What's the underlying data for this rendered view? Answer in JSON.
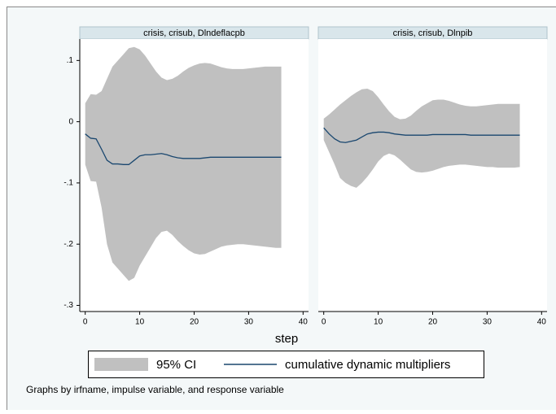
{
  "chart_data": {
    "type": "line",
    "xlabel": "step",
    "note": "Graphs by irfname, impulse variable, and response variable",
    "x": [
      0,
      1,
      2,
      3,
      4,
      5,
      6,
      7,
      8,
      9,
      10,
      11,
      12,
      13,
      14,
      15,
      16,
      17,
      18,
      19,
      20,
      21,
      22,
      23,
      24,
      25,
      26,
      27,
      28,
      29,
      30,
      31,
      32,
      33,
      34,
      35,
      36
    ],
    "xlim": [
      -1,
      41
    ],
    "xticks": [
      0,
      10,
      20,
      30,
      40
    ],
    "ylim": [
      -0.31,
      0.135
    ],
    "yticks": [
      {
        "value": 0.1,
        "label": ".1"
      },
      0,
      {
        "value": -0.1,
        "label": "-.1"
      },
      {
        "value": -0.2,
        "label": "-.2"
      },
      {
        "value": -0.3,
        "label": "-.3"
      }
    ],
    "series": [
      {
        "name": "95% CI",
        "color": "#c0c0c0"
      },
      {
        "name": "cumulative dynamic multipliers",
        "color": "#1a476f"
      }
    ],
    "panels": [
      {
        "title": "crisis, crisub, Dlndeflacpb",
        "ci_upper": [
          0.03,
          0.045,
          0.044,
          0.05,
          0.07,
          0.09,
          0.1,
          0.11,
          0.12,
          0.122,
          0.118,
          0.108,
          0.095,
          0.082,
          0.072,
          0.068,
          0.07,
          0.075,
          0.082,
          0.088,
          0.092,
          0.095,
          0.096,
          0.095,
          0.092,
          0.089,
          0.087,
          0.086,
          0.086,
          0.086,
          0.087,
          0.088,
          0.089,
          0.09,
          0.09,
          0.09,
          0.09
        ],
        "ci_lower": [
          -0.07,
          -0.097,
          -0.098,
          -0.14,
          -0.2,
          -0.23,
          -0.24,
          -0.25,
          -0.26,
          -0.255,
          -0.235,
          -0.22,
          -0.205,
          -0.19,
          -0.18,
          -0.178,
          -0.185,
          -0.195,
          -0.203,
          -0.21,
          -0.215,
          -0.217,
          -0.216,
          -0.212,
          -0.208,
          -0.204,
          -0.202,
          -0.201,
          -0.2,
          -0.2,
          -0.201,
          -0.202,
          -0.203,
          -0.204,
          -0.205,
          -0.206,
          -0.206
        ],
        "values": [
          -0.02,
          -0.027,
          -0.028,
          -0.045,
          -0.063,
          -0.069,
          -0.069,
          -0.07,
          -0.07,
          -0.063,
          -0.056,
          -0.054,
          -0.054,
          -0.053,
          -0.052,
          -0.054,
          -0.057,
          -0.059,
          -0.06,
          -0.06,
          -0.06,
          -0.06,
          -0.059,
          -0.058,
          -0.058,
          -0.058,
          -0.058,
          -0.058,
          -0.058,
          -0.058,
          -0.058,
          -0.058,
          -0.058,
          -0.058,
          -0.058,
          -0.058,
          -0.058
        ]
      },
      {
        "title": "crisis, crisub, Dlnpib",
        "ci_upper": [
          0.005,
          0.012,
          0.02,
          0.028,
          0.035,
          0.042,
          0.048,
          0.053,
          0.054,
          0.05,
          0.04,
          0.028,
          0.017,
          0.008,
          0.004,
          0.005,
          0.01,
          0.018,
          0.025,
          0.03,
          0.035,
          0.036,
          0.036,
          0.034,
          0.031,
          0.028,
          0.026,
          0.025,
          0.025,
          0.026,
          0.027,
          0.028,
          0.029,
          0.029,
          0.029,
          0.029,
          0.029
        ],
        "ci_lower": [
          -0.03,
          -0.05,
          -0.07,
          -0.092,
          -0.1,
          -0.105,
          -0.108,
          -0.1,
          -0.09,
          -0.078,
          -0.065,
          -0.056,
          -0.052,
          -0.055,
          -0.062,
          -0.07,
          -0.078,
          -0.082,
          -0.083,
          -0.082,
          -0.08,
          -0.077,
          -0.074,
          -0.072,
          -0.071,
          -0.07,
          -0.07,
          -0.071,
          -0.072,
          -0.073,
          -0.074,
          -0.074,
          -0.075,
          -0.075,
          -0.075,
          -0.075,
          -0.074
        ],
        "values": [
          -0.01,
          -0.02,
          -0.028,
          -0.033,
          -0.034,
          -0.032,
          -0.03,
          -0.025,
          -0.02,
          -0.018,
          -0.017,
          -0.017,
          -0.018,
          -0.02,
          -0.021,
          -0.022,
          -0.022,
          -0.022,
          -0.022,
          -0.022,
          -0.021,
          -0.021,
          -0.021,
          -0.021,
          -0.021,
          -0.021,
          -0.021,
          -0.022,
          -0.022,
          -0.022,
          -0.022,
          -0.022,
          -0.022,
          -0.022,
          -0.022,
          -0.022,
          -0.022
        ]
      }
    ]
  }
}
